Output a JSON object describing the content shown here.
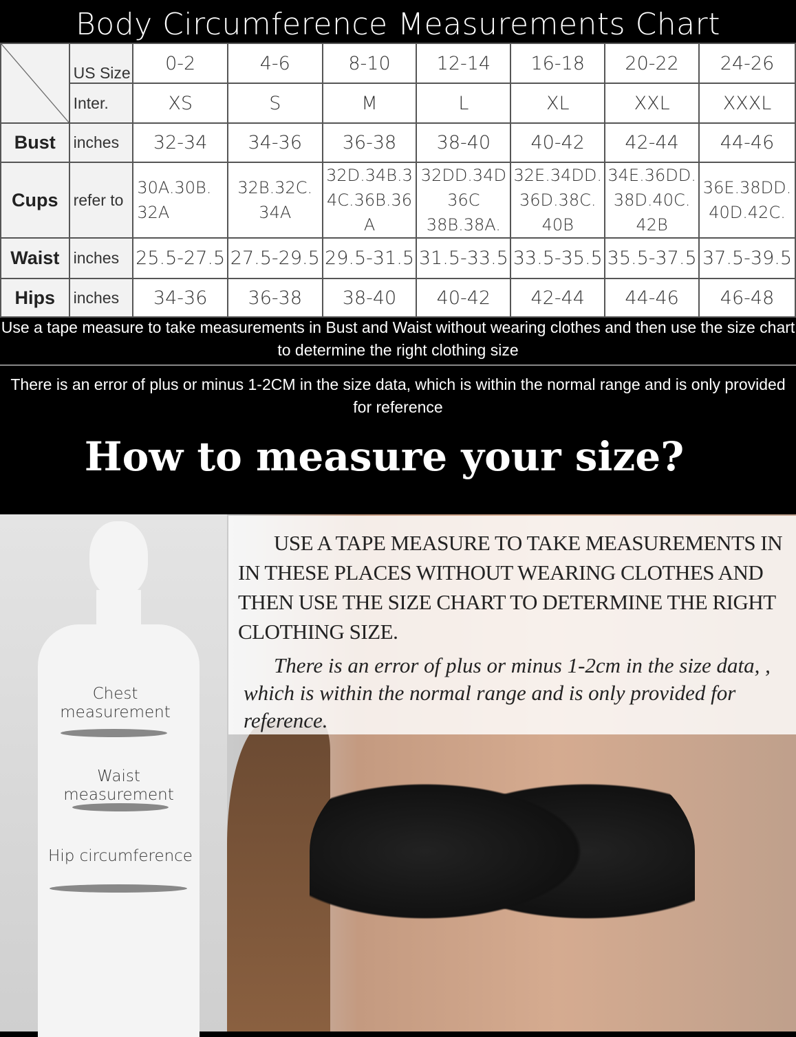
{
  "title": "Body Circumference Measurements Chart",
  "table": {
    "us_size_label": "US Size",
    "inter_label": "Inter.",
    "us_sizes": [
      "0-2",
      "4-6",
      "8-10",
      "12-14",
      "16-18",
      "20-22",
      "24-26"
    ],
    "inter_sizes": [
      "XS",
      "S",
      "M",
      "L",
      "XL",
      "XXL",
      "XXXL"
    ],
    "rows": [
      {
        "label": "Bust",
        "unit": "inches",
        "values": [
          "32-34",
          "34-36",
          "36-38",
          "38-40",
          "40-42",
          "42-44",
          "44-46"
        ]
      },
      {
        "label": "Cups",
        "unit": "refer to",
        "values": [
          "30A.30B.\n32A",
          "32B.32C.\n34A",
          "32D.34B.3\n4C.36B.36\nA",
          "32DD.34D\n36C\n38B.38A.",
          "32E.34DD.\n36D.38C.\n40B",
          "34E.36DD.\n38D.40C.\n42B",
          "36E.38DD.\n40D.42C."
        ]
      },
      {
        "label": "Waist",
        "unit": "inches",
        "values": [
          "25.5-27.5",
          "27.5-29.5",
          "29.5-31.5",
          "31.5-33.5",
          "33.5-35.5",
          "35.5-37.5",
          "37.5-39.5"
        ]
      },
      {
        "label": "Hips",
        "unit": "inches",
        "values": [
          "34-36",
          "36-38",
          "38-40",
          "40-42",
          "42-44",
          "44-46",
          "46-48"
        ]
      }
    ]
  },
  "note1": "Use a tape measure to take measurements in Bust and Waist without wearing clothes and then use the size chart to determine the right clothing size",
  "note2": "There is an error of plus or minus 1-2CM in the size data, which is within the normal range and is only provided for reference",
  "howto": "How to measure your size?",
  "figure": {
    "chest": "Chest measurement",
    "waist": "Waist measurement",
    "hip": "Hip circumference"
  },
  "instructions": "USE A TAPE MEASURE TO TAKE MEASUREMENTS IN IN THESE PLACES WITHOUT WEARING CLOTHES AND THEN USE THE SIZE CHART TO DETERMINE THE RIGHT CLOTHING SIZE.",
  "error_note": "There is an error of plus or minus 1-2cm in the size data, , which is within the normal range and is only provided for reference."
}
